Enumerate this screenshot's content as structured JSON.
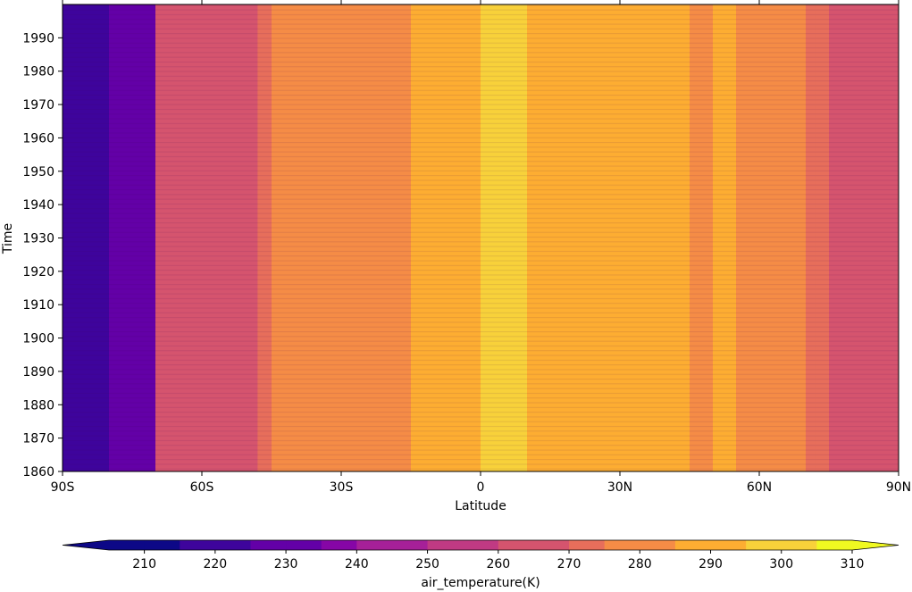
{
  "chart_data": {
    "type": "heatmap",
    "title": "",
    "xlabel": "Latitude",
    "ylabel": "Time",
    "xlim": [
      -90,
      90
    ],
    "ylim": [
      1860,
      2000
    ],
    "x_ticks": [
      {
        "value": -90,
        "label": "90S"
      },
      {
        "value": -60,
        "label": "60S"
      },
      {
        "value": -30,
        "label": "30S"
      },
      {
        "value": 0,
        "label": "0"
      },
      {
        "value": 30,
        "label": "30N"
      },
      {
        "value": 60,
        "label": "60N"
      },
      {
        "value": 90,
        "label": "90N"
      }
    ],
    "y_ticks": [
      1860,
      1870,
      1880,
      1890,
      1900,
      1910,
      1920,
      1930,
      1940,
      1950,
      1960,
      1970,
      1980,
      1990
    ],
    "y_tick_labels": [
      "1860",
      "1870",
      "1880",
      "1890",
      "1900",
      "1910",
      "1920",
      "1930",
      "1940",
      "1950",
      "1960",
      "1970",
      "1980",
      "1990"
    ],
    "latitude_profile": {
      "latitude": [
        -90,
        -85,
        -80,
        -75,
        -72,
        -70,
        -65,
        -60,
        -55,
        -50,
        -48,
        -45,
        -40,
        -38,
        -35,
        -30,
        -25,
        -20,
        -15,
        -12,
        -10,
        -5,
        0,
        5,
        10,
        15,
        20,
        25,
        28,
        30,
        35,
        40,
        45,
        50,
        55,
        60,
        65,
        70,
        72,
        75,
        80,
        85,
        90
      ],
      "air_temperature_K": [
        224,
        224,
        225,
        226,
        230,
        262,
        262,
        262,
        262,
        262,
        270,
        275,
        276,
        282,
        283,
        283,
        283,
        284,
        286,
        293,
        294,
        294,
        295,
        296,
        294,
        294,
        293,
        291,
        293,
        292,
        287,
        285,
        284,
        285,
        282,
        282,
        282,
        272,
        272,
        265,
        265,
        265,
        265
      ]
    },
    "colorbar": {
      "label": "air_temperature(K)",
      "levels": [
        205,
        210,
        215,
        220,
        225,
        230,
        235,
        240,
        245,
        250,
        255,
        260,
        265,
        270,
        275,
        280,
        285,
        290,
        295,
        300,
        305,
        310
      ],
      "boundaries": [
        210,
        220,
        230,
        240,
        250,
        260,
        270,
        280,
        290,
        300,
        310
      ],
      "tick_labels": [
        "210",
        "220",
        "230",
        "240",
        "250",
        "260",
        "270",
        "280",
        "290",
        "300",
        "310"
      ],
      "extend": "both",
      "colormap": "plasma",
      "band_colors": [
        "#0d0887",
        "#3e049c",
        "#6300a7",
        "#8606a6",
        "#a62098",
        "#c03a83",
        "#d5546e",
        "#e76e5b",
        "#f58c46",
        "#fdad32",
        "#f8d13a",
        "#f0f921"
      ]
    }
  }
}
